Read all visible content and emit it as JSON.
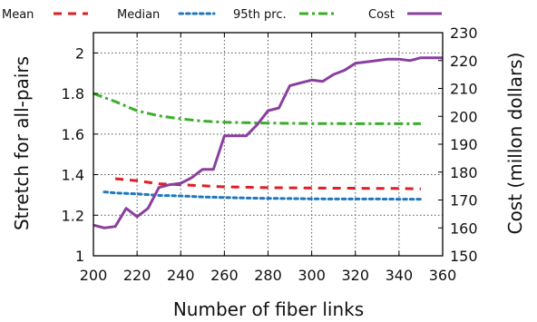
{
  "chart_data": {
    "type": "line",
    "title": "",
    "xlabel": "Number of fiber links",
    "ylabel": "Stretch for all-pairs",
    "y2label": "Cost (millon dollars)",
    "xlim": [
      200,
      360
    ],
    "ylim": [
      1,
      2.1
    ],
    "y2lim": [
      150,
      230
    ],
    "xticks": [
      "200",
      "220",
      "240",
      "260",
      "280",
      "300",
      "320",
      "340",
      "360"
    ],
    "yticks": [
      "1",
      "1.2",
      "1.4",
      "1.6",
      "1.8",
      "2"
    ],
    "y2ticks": [
      "150",
      "160",
      "170",
      "180",
      "190",
      "200",
      "210",
      "220",
      "230"
    ],
    "grid": true,
    "legend_position": "top",
    "series": [
      {
        "name": "Mean",
        "axis": "left",
        "color": "#dd1f26",
        "style": "dashed",
        "x": [
          210,
          220,
          230,
          240,
          250,
          260,
          270,
          280,
          290,
          300,
          310,
          320,
          330,
          340,
          350
        ],
        "y": [
          1.38,
          1.37,
          1.355,
          1.35,
          1.345,
          1.34,
          1.338,
          1.336,
          1.335,
          1.334,
          1.333,
          1.333,
          1.332,
          1.332,
          1.33
        ]
      },
      {
        "name": "Median",
        "axis": "left",
        "color": "#1f77c0",
        "style": "dotted",
        "x": [
          205,
          210,
          220,
          230,
          240,
          250,
          260,
          270,
          280,
          290,
          300,
          310,
          320,
          330,
          340,
          350
        ],
        "y": [
          1.315,
          1.31,
          1.305,
          1.298,
          1.295,
          1.29,
          1.287,
          1.285,
          1.283,
          1.282,
          1.281,
          1.28,
          1.28,
          1.28,
          1.279,
          1.279
        ]
      },
      {
        "name": "95th prc.",
        "axis": "left",
        "color": "#3aae2a",
        "style": "dash-dot",
        "x": [
          200,
          210,
          220,
          230,
          240,
          250,
          260,
          270,
          280,
          290,
          300,
          310,
          320,
          330,
          340,
          350
        ],
        "y": [
          1.8,
          1.76,
          1.715,
          1.69,
          1.675,
          1.664,
          1.658,
          1.656,
          1.654,
          1.653,
          1.652,
          1.652,
          1.651,
          1.651,
          1.651,
          1.651
        ]
      },
      {
        "name": "Cost",
        "axis": "right",
        "color": "#8a3f9e",
        "style": "solid",
        "x": [
          200,
          205,
          210,
          215,
          220,
          225,
          230,
          235,
          240,
          245,
          250,
          255,
          260,
          265,
          270,
          275,
          280,
          285,
          290,
          295,
          300,
          305,
          310,
          315,
          320,
          325,
          330,
          335,
          340,
          345,
          350,
          355,
          360
        ],
        "y": [
          161,
          160,
          160.5,
          167,
          164,
          167,
          174.5,
          175.5,
          176,
          178,
          181,
          181,
          193,
          193,
          193,
          197,
          202,
          203,
          211,
          212,
          213,
          212.5,
          215,
          216.5,
          219,
          219.5,
          220,
          220.5,
          220.5,
          220,
          221,
          221,
          221
        ]
      }
    ]
  }
}
